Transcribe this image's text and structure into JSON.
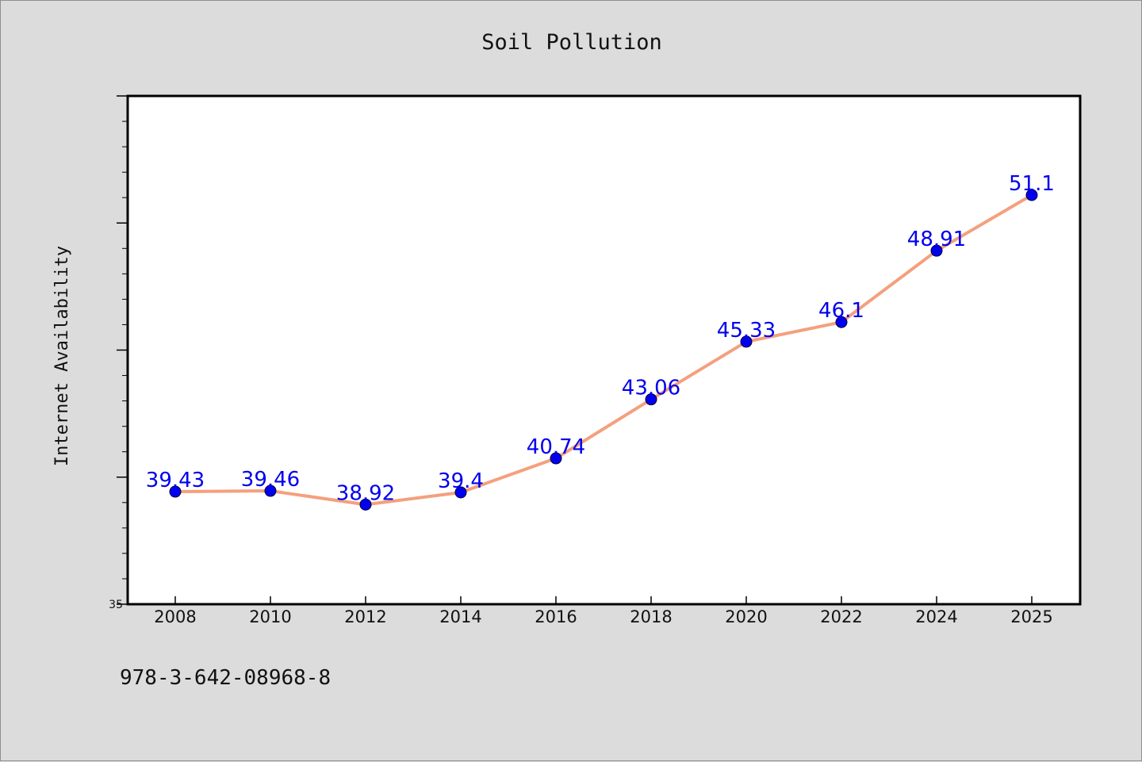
{
  "chart_data": {
    "type": "line",
    "title": "Soil Pollution",
    "xlabel": "",
    "ylabel": "Internet Availability",
    "categories": [
      "2008",
      "2010",
      "2012",
      "2014",
      "2016",
      "2018",
      "2020",
      "2022",
      "2024",
      "2025"
    ],
    "series": [
      {
        "values": [
          39.43,
          39.46,
          38.92,
          39.4,
          40.74,
          43.06,
          45.33,
          46.1,
          48.91,
          51.1
        ],
        "data_labels": [
          "39.43",
          "39.46",
          "38.92",
          "39.4",
          "40.74",
          "43.06",
          "45.33",
          "46.1",
          "48.91",
          "51.1"
        ]
      }
    ],
    "ylim": [
      35,
      55
    ],
    "y_tick_labels": [
      "35"
    ],
    "grid": false,
    "line_color": "#f4a07e",
    "marker_color": "#0000ee",
    "label_color": "#0000ee",
    "plot_background": "#ffffff",
    "page_background": "#dcdcdc"
  },
  "footer": {
    "isbn": "978-3-642-08968-8"
  }
}
